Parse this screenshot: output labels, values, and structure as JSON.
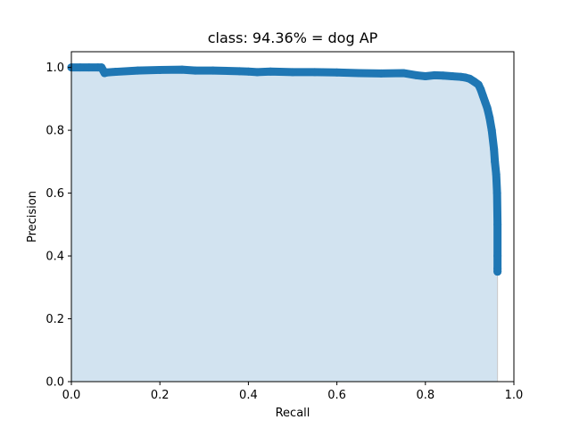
{
  "chart_data": {
    "type": "area",
    "title": "class: 94.36% = dog AP",
    "xlabel": "Recall",
    "ylabel": "Precision",
    "xlim": [
      0.0,
      1.0
    ],
    "ylim": [
      0.0,
      1.05
    ],
    "x_ticks": [
      "0.0",
      "0.2",
      "0.4",
      "0.6",
      "0.8",
      "1.0"
    ],
    "y_ticks": [
      "0.0",
      "0.2",
      "0.4",
      "0.6",
      "0.8",
      "1.0"
    ],
    "grid": false,
    "line_color": "#1f77b4",
    "fill_color": "#d2e3f0",
    "series": [
      {
        "x": [
          0.0,
          0.02,
          0.04,
          0.06,
          0.068,
          0.072,
          0.075,
          0.08,
          0.1,
          0.15,
          0.2,
          0.25,
          0.28,
          0.32,
          0.38,
          0.4,
          0.42,
          0.45,
          0.5,
          0.55,
          0.6,
          0.65,
          0.7,
          0.75,
          0.78,
          0.8,
          0.82,
          0.84,
          0.86,
          0.88,
          0.89,
          0.9,
          0.91,
          0.92,
          0.925,
          0.93,
          0.935,
          0.94,
          0.945,
          0.95,
          0.955,
          0.957,
          0.96,
          0.962,
          0.963,
          0.963,
          0.963,
          0.963
        ],
        "y": [
          1.0,
          1.0,
          1.0,
          1.0,
          1.0,
          0.99,
          0.982,
          0.984,
          0.986,
          0.99,
          0.992,
          0.993,
          0.99,
          0.99,
          0.988,
          0.987,
          0.985,
          0.987,
          0.985,
          0.985,
          0.984,
          0.982,
          0.981,
          0.982,
          0.975,
          0.972,
          0.975,
          0.974,
          0.972,
          0.97,
          0.968,
          0.964,
          0.955,
          0.945,
          0.93,
          0.91,
          0.89,
          0.87,
          0.84,
          0.8,
          0.74,
          0.7,
          0.66,
          0.6,
          0.5,
          0.4,
          0.36,
          0.35
        ]
      }
    ]
  }
}
